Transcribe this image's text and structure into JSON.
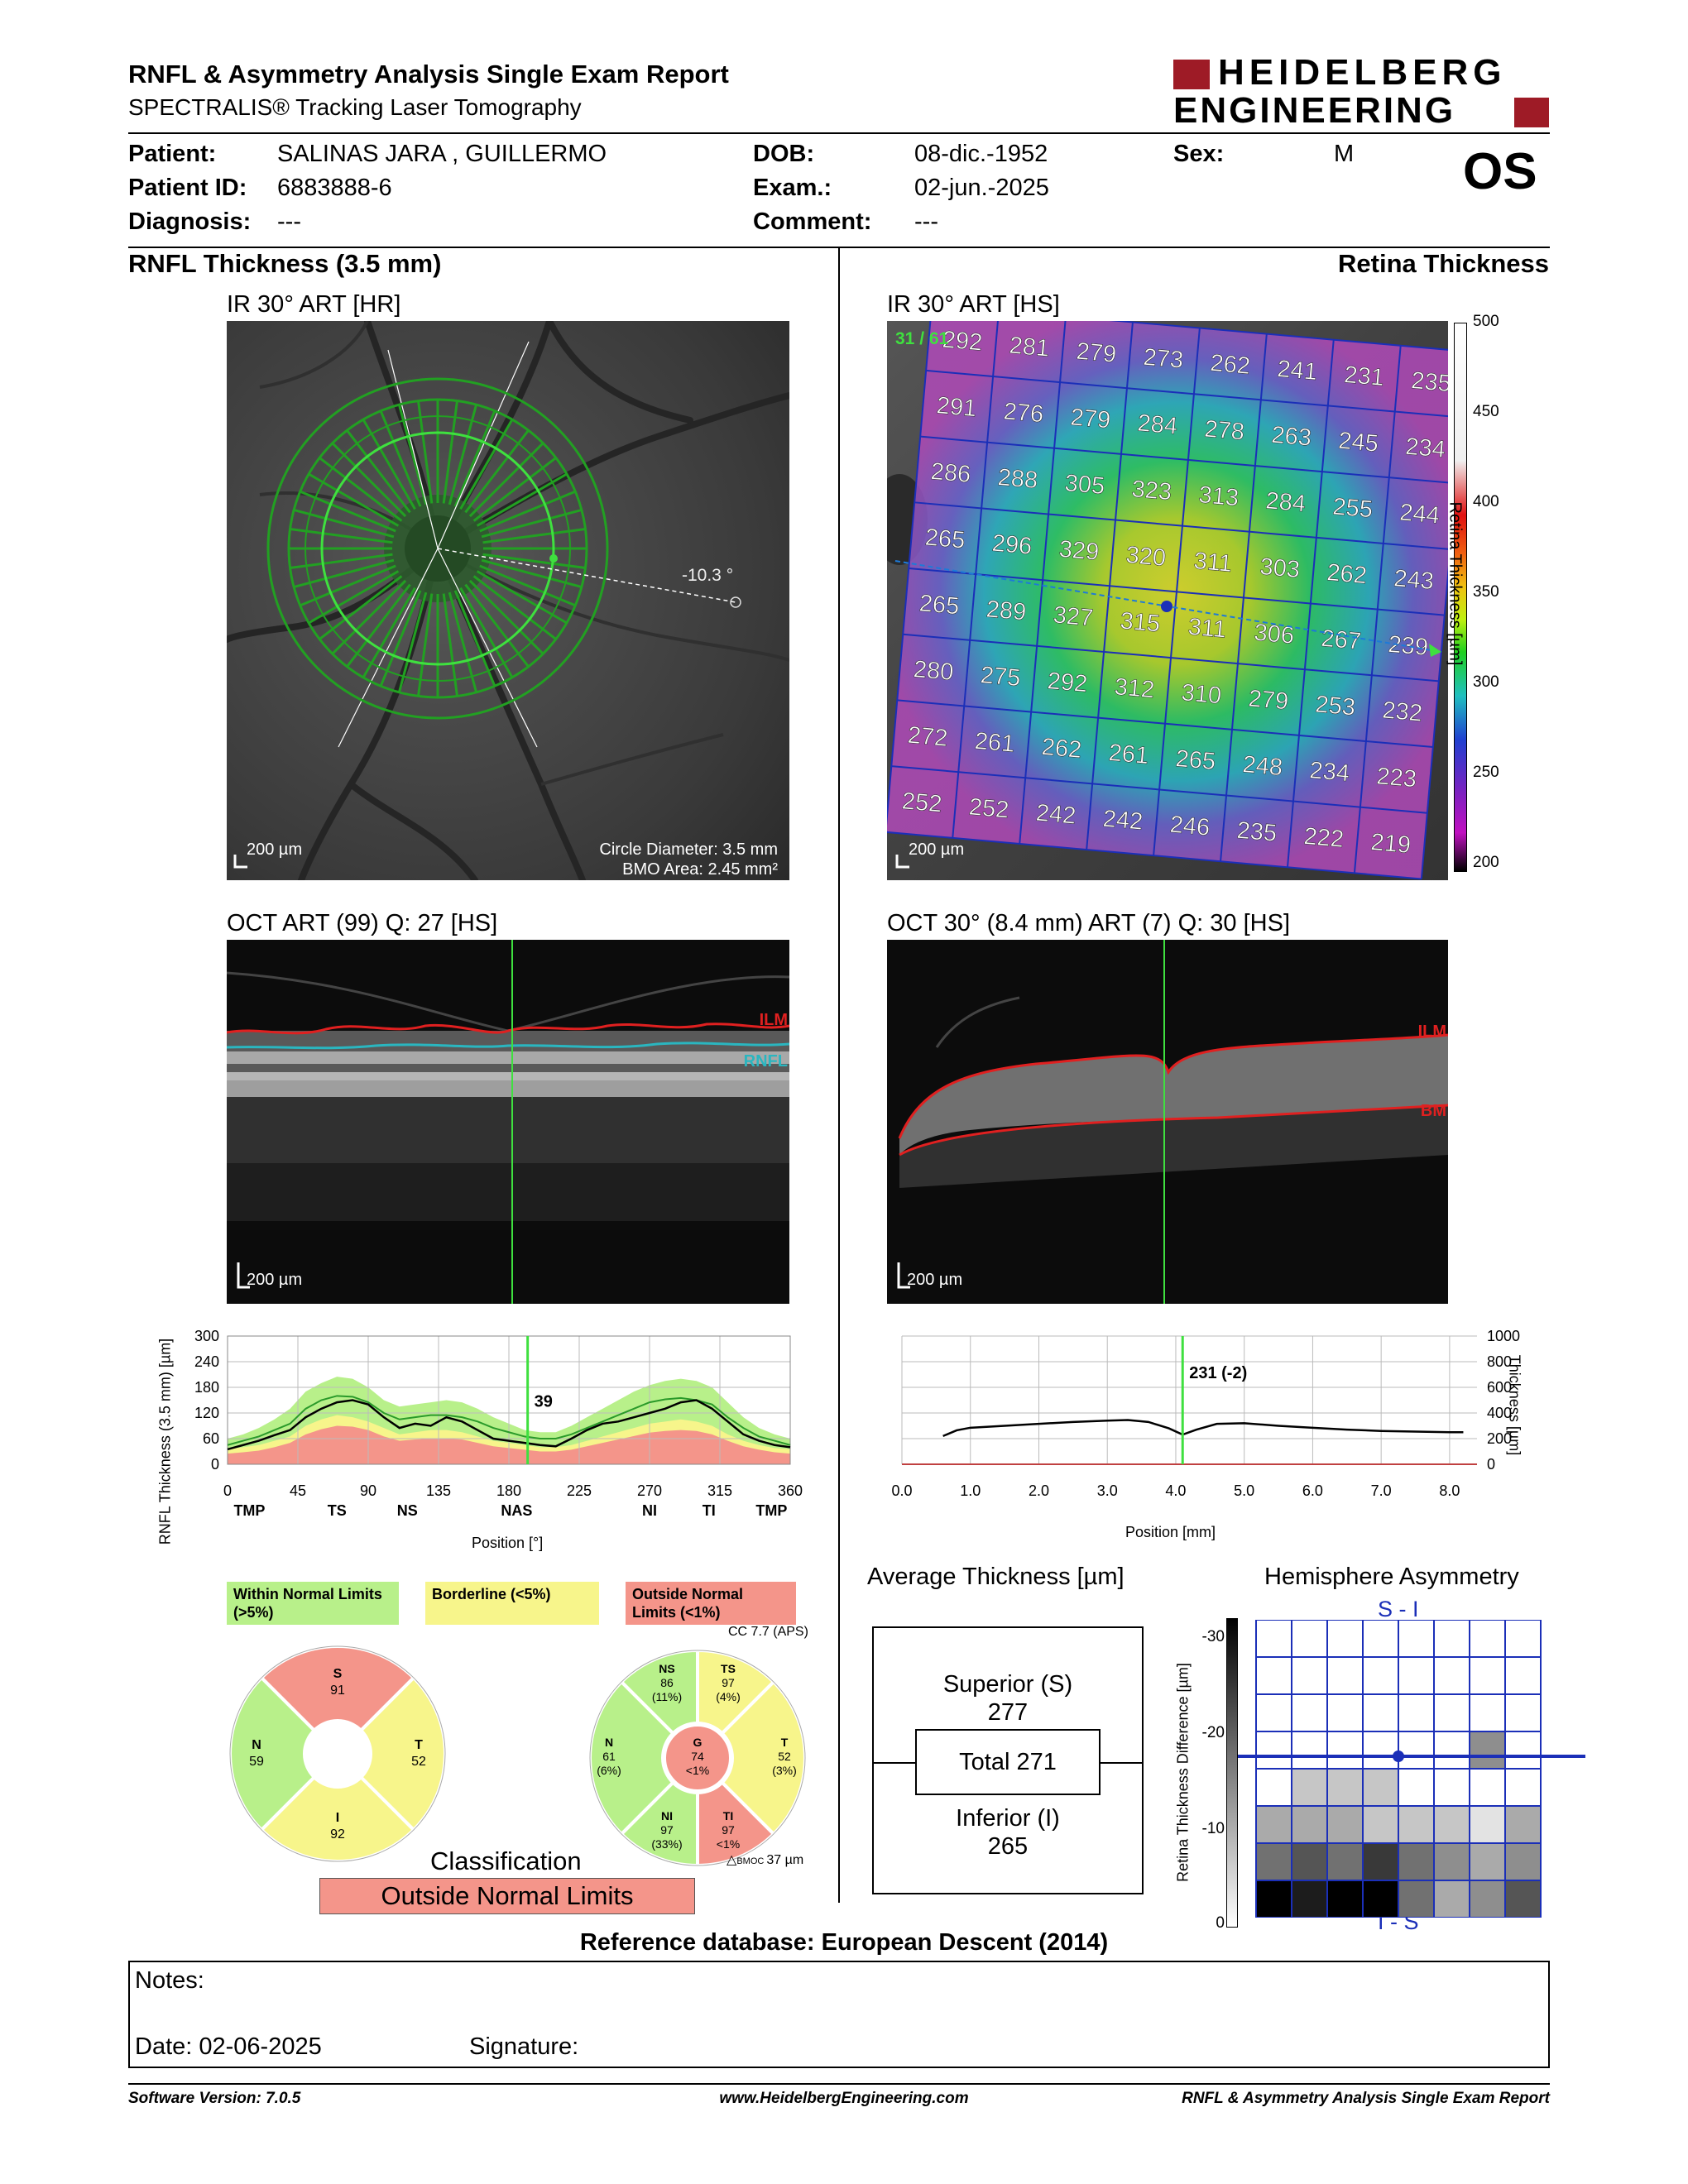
{
  "header": {
    "title": "RNFL & Asymmetry Analysis Single Exam Report",
    "subtitle": "SPECTRALIS® Tracking Laser Tomography",
    "logo_line1": "HEIDELBERG",
    "logo_line2": "ENGINEERING"
  },
  "patient": {
    "patient_label": "Patient:",
    "patient_value": "SALINAS JARA , GUILLERMO",
    "id_label": "Patient ID:",
    "id_value": "6883888-6",
    "diag_label": "Diagnosis:",
    "diag_value": "---",
    "dob_label": "DOB:",
    "dob_value": "08-dic.-1952",
    "exam_label": "Exam.:",
    "exam_value": "02-jun.-2025",
    "comment_label": "Comment:",
    "comment_value": "---",
    "sex_label": "Sex:",
    "sex_value": "M",
    "eye": "OS"
  },
  "sections": {
    "left": "RNFL Thickness (3.5 mm)",
    "right": "Retina Thickness"
  },
  "ir_left": {
    "label": "IR 30° ART [HR]",
    "angle": "-10.3 °",
    "scale": "200 µm",
    "circle_diameter": "Circle Diameter: 3.5 mm",
    "bmo_area": "BMO Area: 2.45 mm²"
  },
  "ir_right": {
    "label": "IR 30° ART [HS]",
    "counter": "31 / 61",
    "scale": "200 µm",
    "grid": [
      [
        292,
        281,
        279,
        273,
        262,
        241,
        231,
        235
      ],
      [
        291,
        276,
        279,
        284,
        278,
        263,
        245,
        234
      ],
      [
        286,
        288,
        305,
        323,
        313,
        284,
        255,
        244
      ],
      [
        265,
        296,
        329,
        320,
        311,
        303,
        262,
        243
      ],
      [
        265,
        289,
        327,
        315,
        311,
        306,
        267,
        239
      ],
      [
        280,
        275,
        292,
        312,
        310,
        279,
        253,
        232
      ],
      [
        272,
        261,
        262,
        261,
        265,
        248,
        234,
        223
      ],
      [
        252,
        252,
        242,
        242,
        246,
        235,
        222,
        219
      ]
    ],
    "colorbar_ticks": [
      "500",
      "450",
      "400",
      "350",
      "300",
      "250",
      "200"
    ],
    "colorbar_title": "Retina Thickness [µm]"
  },
  "oct_left": {
    "label": "OCT ART (99) Q: 27 [HS]",
    "ilm": "ILM",
    "rnfl": "RNFL",
    "scale": "200 µm"
  },
  "oct_right": {
    "label": "OCT 30° (8.4 mm) ART (7) Q: 30 [HS]",
    "ilm": "ILM",
    "bm": "BM",
    "scale": "200 µm"
  },
  "chart_data": [
    {
      "type": "line",
      "ylabel": "RNFL Thickness (3.5 mm) [µm]",
      "xlabel": "Position [°]",
      "ylim": [
        0,
        300
      ],
      "xlim": [
        0,
        360
      ],
      "yticks": [
        "300",
        "240",
        "180",
        "120",
        "60",
        "0"
      ],
      "xticks": [
        "0",
        "45",
        "90",
        "135",
        "180",
        "225",
        "270",
        "315",
        "360"
      ],
      "sector_labels": [
        "TMP",
        "TS",
        "NS",
        "NAS",
        "NI",
        "TI",
        "TMP"
      ],
      "marker_value": "39",
      "marker_x": 192,
      "x": [
        0,
        10,
        20,
        30,
        40,
        50,
        60,
        70,
        80,
        90,
        100,
        110,
        120,
        130,
        140,
        150,
        160,
        170,
        180,
        190,
        200,
        210,
        220,
        230,
        240,
        250,
        260,
        270,
        280,
        290,
        300,
        310,
        320,
        330,
        340,
        350,
        360
      ],
      "measured": [
        35,
        45,
        55,
        68,
        80,
        110,
        130,
        145,
        150,
        140,
        110,
        85,
        95,
        90,
        110,
        100,
        80,
        60,
        55,
        50,
        45,
        42,
        60,
        80,
        95,
        100,
        110,
        120,
        130,
        145,
        150,
        130,
        100,
        70,
        55,
        45,
        40
      ],
      "band_p95": [
        60,
        70,
        85,
        105,
        130,
        170,
        190,
        205,
        200,
        180,
        150,
        135,
        140,
        145,
        150,
        145,
        130,
        110,
        95,
        80,
        75,
        75,
        90,
        110,
        130,
        150,
        170,
        185,
        195,
        200,
        195,
        180,
        145,
        110,
        85,
        70,
        60
      ],
      "band_p5": [
        35,
        40,
        45,
        55,
        65,
        90,
        105,
        115,
        110,
        100,
        85,
        70,
        75,
        80,
        80,
        75,
        65,
        55,
        50,
        45,
        40,
        40,
        45,
        55,
        65,
        75,
        85,
        95,
        100,
        105,
        100,
        90,
        70,
        55,
        45,
        38,
        35
      ],
      "band_p1": [
        25,
        28,
        32,
        40,
        50,
        70,
        82,
        90,
        88,
        80,
        65,
        55,
        58,
        60,
        60,
        58,
        50,
        42,
        38,
        34,
        30,
        30,
        34,
        42,
        50,
        58,
        66,
        74,
        78,
        80,
        78,
        70,
        55,
        42,
        34,
        28,
        25
      ],
      "mean": [
        45,
        55,
        65,
        80,
        95,
        130,
        150,
        160,
        158,
        145,
        120,
        105,
        110,
        115,
        115,
        110,
        100,
        85,
        75,
        65,
        60,
        60,
        70,
        85,
        100,
        115,
        130,
        145,
        152,
        155,
        150,
        140,
        110,
        85,
        65,
        55,
        45
      ]
    },
    {
      "type": "line",
      "xlabel": "Position [mm]",
      "ylabel": "Thickness [µm]",
      "ylim": [
        0,
        1000
      ],
      "xlim": [
        0,
        8.4
      ],
      "yticks": [
        "1000",
        "800",
        "600",
        "400",
        "200",
        "0"
      ],
      "xticks": [
        "0.0",
        "1.0",
        "2.0",
        "3.0",
        "4.0",
        "5.0",
        "6.0",
        "7.0",
        "8.0"
      ],
      "marker_value": "231 (-2)",
      "marker_x": 4.1,
      "x": [
        0.6,
        0.8,
        1.0,
        1.5,
        2.0,
        2.5,
        3.0,
        3.3,
        3.6,
        3.9,
        4.1,
        4.3,
        4.6,
        5.0,
        5.5,
        6.0,
        6.5,
        7.0,
        7.5,
        8.0,
        8.2
      ],
      "values": [
        220,
        265,
        285,
        300,
        315,
        330,
        340,
        345,
        330,
        280,
        231,
        270,
        315,
        320,
        300,
        285,
        270,
        260,
        255,
        250,
        250
      ]
    }
  ],
  "legend": {
    "within": "Within Normal Limits (>5%)",
    "borderline": "Borderline (<5%)",
    "outside": "Outside Normal Limits (<1%)",
    "colors": {
      "within": "#b8f08a",
      "borderline": "#f7f58b",
      "outside": "#f4958a"
    }
  },
  "classification_left": {
    "S": "91",
    "N": "59",
    "T": "52",
    "I": "92"
  },
  "classification_right": {
    "cc": "CC 7.7 (APS)",
    "NS": {
      "v": "86",
      "p": "(11%)"
    },
    "TS": {
      "v": "97",
      "p": "(4%)"
    },
    "N": {
      "v": "61",
      "p": "(6%)"
    },
    "G": {
      "v": "74",
      "p": "<1%"
    },
    "T": {
      "v": "52",
      "p": "(3%)"
    },
    "NI": {
      "v": "97",
      "p": "(33%)"
    },
    "TI": {
      "v": "97",
      "p": "<1%"
    },
    "bmoc": "37 µm"
  },
  "classification": {
    "title": "Classification",
    "result": "Outside Normal Limits"
  },
  "average": {
    "title": "Average Thickness [µm]",
    "superior_label": "Superior (S)",
    "superior_value": "277",
    "total": "Total 271",
    "inferior_label": "Inferior (I)",
    "inferior_value": "265"
  },
  "hemisphere": {
    "title": "Hemisphere Asymmetry",
    "top": "S - I",
    "bottom": "I - S",
    "axis_title": "Retina Thickness Difference [µm]",
    "ticks": [
      "-30",
      "-20",
      "-10",
      "0"
    ],
    "top_rows": [
      [
        0,
        0,
        0,
        0,
        0,
        0,
        0,
        0
      ],
      [
        0,
        0,
        0,
        0,
        0,
        0,
        0,
        0
      ],
      [
        0,
        0,
        0,
        0,
        0,
        0,
        0,
        0
      ],
      [
        0,
        0,
        0,
        0,
        0,
        0,
        4,
        0
      ]
    ],
    "bottom_rows": [
      [
        0,
        2,
        2,
        2,
        0,
        0,
        0,
        0
      ],
      [
        3,
        3,
        3,
        2,
        2,
        2,
        1,
        3
      ],
      [
        5,
        6,
        5,
        7,
        5,
        4,
        3,
        4
      ],
      [
        9,
        8,
        9,
        9,
        5,
        3,
        4,
        6
      ]
    ]
  },
  "reference": "Reference database: European Descent (2014)",
  "notes": {
    "notes_label": "Notes:",
    "date_label": "Date: 02-06-2025",
    "signature_label": "Signature:"
  },
  "footer": {
    "software": "Software Version: 7.0.5",
    "website": "www.HeidelbergEngineering.com",
    "report": "RNFL & Asymmetry Analysis Single Exam Report"
  }
}
